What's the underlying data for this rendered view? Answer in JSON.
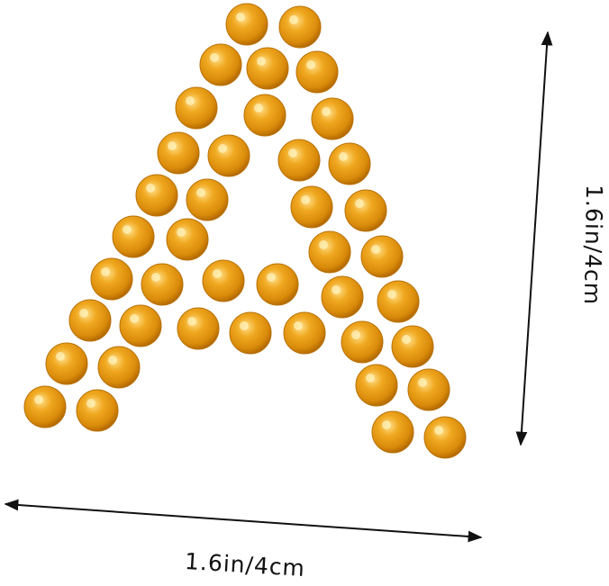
{
  "labels": {
    "width": "1.6in/4cm",
    "height": "1.6in/4cm"
  }
}
